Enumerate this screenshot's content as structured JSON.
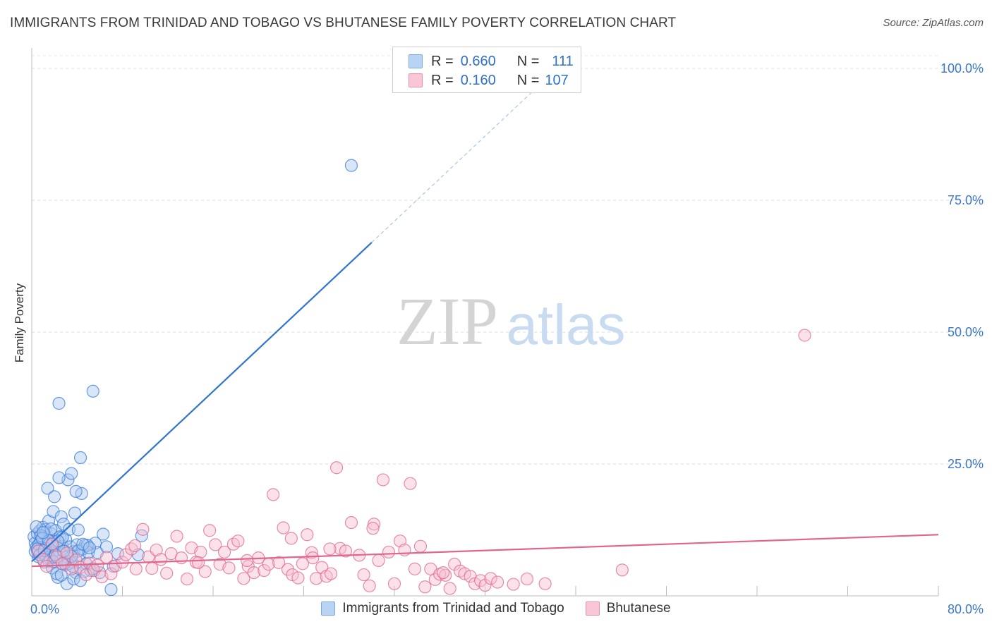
{
  "header": {
    "title": "IMMIGRANTS FROM TRINIDAD AND TOBAGO VS BHUTANESE FAMILY POVERTY CORRELATION CHART",
    "source": "Source: ZipAtlas.com"
  },
  "watermark": {
    "zip": "ZIP",
    "atlas": "atlas"
  },
  "legend": {
    "rows": [
      {
        "r_label": "R =",
        "r_value": "0.660",
        "n_label": "N =",
        "n_value": "111",
        "color": "#7aaae8",
        "fill": "#b9d3f5"
      },
      {
        "r_label": "R =",
        "r_value": "0.160",
        "n_label": "N =",
        "n_value": "107",
        "color": "#eb8fb0",
        "fill": "#f8c6d6"
      }
    ]
  },
  "chart_data": {
    "type": "scatter",
    "title": "IMMIGRANTS FROM TRINIDAD AND TOBAGO VS BHUTANESE FAMILY POVERTY CORRELATION CHART",
    "xlabel": "",
    "ylabel": "Family Poverty",
    "xlim": [
      0,
      80
    ],
    "ylim": [
      0,
      100
    ],
    "x_tick_labels": [
      "0.0%",
      "80.0%"
    ],
    "y_ticks": [
      25,
      50,
      75,
      100
    ],
    "y_tick_labels": [
      "25.0%",
      "50.0%",
      "75.0%",
      "100.0%"
    ],
    "grid": true,
    "series": [
      {
        "name": "Immigrants from Trinidad and Tobago",
        "color": "#3a7bd5",
        "fill": "#aac8f0",
        "trend": {
          "x0": 0,
          "y0": 6.5,
          "x1": 30,
          "y1": 67,
          "dashed_to_x": 45
        },
        "points": [
          [
            0.2,
            11.2
          ],
          [
            0.3,
            10.0
          ],
          [
            0.4,
            9.2
          ],
          [
            0.5,
            8.5
          ],
          [
            0.5,
            11.8
          ],
          [
            0.6,
            7.4
          ],
          [
            0.7,
            12.3
          ],
          [
            0.7,
            9.8
          ],
          [
            0.8,
            10.5
          ],
          [
            0.9,
            8.9
          ],
          [
            1.0,
            13.0
          ],
          [
            1.0,
            11.0
          ],
          [
            1.1,
            9.0
          ],
          [
            1.2,
            7.7
          ],
          [
            1.2,
            12.6
          ],
          [
            1.3,
            10.2
          ],
          [
            1.4,
            8.3
          ],
          [
            1.5,
            14.2
          ],
          [
            1.5,
            6.6
          ],
          [
            1.6,
            9.9
          ],
          [
            1.7,
            11.8
          ],
          [
            1.8,
            5.3
          ],
          [
            1.8,
            8.1
          ],
          [
            1.9,
            16.0
          ],
          [
            2.0,
            10.3
          ],
          [
            2.0,
            7.3
          ],
          [
            2.1,
            12.4
          ],
          [
            2.2,
            9.4
          ],
          [
            2.3,
            3.5
          ],
          [
            2.4,
            8.2
          ],
          [
            2.5,
            11.2
          ],
          [
            2.6,
            15.0
          ],
          [
            2.6,
            6.7
          ],
          [
            2.7,
            9.4
          ],
          [
            2.8,
            13.6
          ],
          [
            2.9,
            8.4
          ],
          [
            3.0,
            10.7
          ],
          [
            3.0,
            5.8
          ],
          [
            3.1,
            7.4
          ],
          [
            3.2,
            22.0
          ],
          [
            3.3,
            12.6
          ],
          [
            3.4,
            9.3
          ],
          [
            3.5,
            23.2
          ],
          [
            3.6,
            6.3
          ],
          [
            3.7,
            8.4
          ],
          [
            3.8,
            15.7
          ],
          [
            3.9,
            4.4
          ],
          [
            4.0,
            9.7
          ],
          [
            4.1,
            12.5
          ],
          [
            4.2,
            7.7
          ],
          [
            4.3,
            26.2
          ],
          [
            4.4,
            19.4
          ],
          [
            4.5,
            8.9
          ],
          [
            4.6,
            4.6
          ],
          [
            4.7,
            9.6
          ],
          [
            4.8,
            6.1
          ],
          [
            5.0,
            8.2
          ],
          [
            5.2,
            4.8
          ],
          [
            5.4,
            38.8
          ],
          [
            5.6,
            10.0
          ],
          [
            5.8,
            8.2
          ],
          [
            6.0,
            4.4
          ],
          [
            6.3,
            11.7
          ],
          [
            6.6,
            9.3
          ],
          [
            7.0,
            1.2
          ],
          [
            7.2,
            5.6
          ],
          [
            7.6,
            8.0
          ],
          [
            1.4,
            20.4
          ],
          [
            2.4,
            22.4
          ],
          [
            3.9,
            19.8
          ],
          [
            2.0,
            18.8
          ],
          [
            1.7,
            12.7
          ],
          [
            0.4,
            13.1
          ],
          [
            0.9,
            8.1
          ],
          [
            1.1,
            6.4
          ],
          [
            1.6,
            7.2
          ],
          [
            2.2,
            4.2
          ],
          [
            3.1,
            2.3
          ],
          [
            2.6,
            3.9
          ],
          [
            4.1,
            8.5
          ],
          [
            4.9,
            9.6
          ],
          [
            5.4,
            5.2
          ],
          [
            0.3,
            8.4
          ],
          [
            0.6,
            9.7
          ],
          [
            0.8,
            11.4
          ],
          [
            1.3,
            7.3
          ],
          [
            1.9,
            6.5
          ],
          [
            2.7,
            11.1
          ],
          [
            3.2,
            6.1
          ],
          [
            3.6,
            5.6
          ],
          [
            2.4,
            36.5
          ],
          [
            9.7,
            11.4
          ],
          [
            9.4,
            7.8
          ],
          [
            28.2,
            81.6
          ],
          [
            0.5,
            8.9
          ],
          [
            0.9,
            10.9
          ],
          [
            1.2,
            9.0
          ],
          [
            1.5,
            10.4
          ],
          [
            2.1,
            7.8
          ],
          [
            2.9,
            6.2
          ],
          [
            3.5,
            7.5
          ],
          [
            4.5,
            9.8
          ],
          [
            1.0,
            12.0
          ],
          [
            1.8,
            9.8
          ],
          [
            2.3,
            10.4
          ],
          [
            0.7,
            7.8
          ],
          [
            1.1,
            8.6
          ],
          [
            2.8,
            8.5
          ],
          [
            3.7,
            3.2
          ],
          [
            4.3,
            2.9
          ],
          [
            5.1,
            9.1
          ]
        ]
      },
      {
        "name": "Bhutanese",
        "color": "#e0668f",
        "fill": "#f6bfd1",
        "trend": {
          "x0": 0,
          "y0": 5.6,
          "x1": 80,
          "y1": 11.6
        },
        "points": [
          [
            0.6,
            8.5
          ],
          [
            1.0,
            6.9
          ],
          [
            1.3,
            5.6
          ],
          [
            1.8,
            9.8
          ],
          [
            2.2,
            7.4
          ],
          [
            2.7,
            6.1
          ],
          [
            3.1,
            8.1
          ],
          [
            3.5,
            5.1
          ],
          [
            3.9,
            6.8
          ],
          [
            4.3,
            5.4
          ],
          [
            4.8,
            4.0
          ],
          [
            5.1,
            6.2
          ],
          [
            5.5,
            4.8
          ],
          [
            5.8,
            5.8
          ],
          [
            6.2,
            3.6
          ],
          [
            6.6,
            7.3
          ],
          [
            7.0,
            4.2
          ],
          [
            7.4,
            5.7
          ],
          [
            8.0,
            6.4
          ],
          [
            8.3,
            7.8
          ],
          [
            8.8,
            8.9
          ],
          [
            9.2,
            5.1
          ],
          [
            9.8,
            12.6
          ],
          [
            10.3,
            7.4
          ],
          [
            10.6,
            5.2
          ],
          [
            11.0,
            8.7
          ],
          [
            11.4,
            6.9
          ],
          [
            11.9,
            4.3
          ],
          [
            12.3,
            8.0
          ],
          [
            12.8,
            11.3
          ],
          [
            13.2,
            7.2
          ],
          [
            13.7,
            3.2
          ],
          [
            14.1,
            9.1
          ],
          [
            14.5,
            6.4
          ],
          [
            14.9,
            8.3
          ],
          [
            15.3,
            4.6
          ],
          [
            15.7,
            12.4
          ],
          [
            16.2,
            9.7
          ],
          [
            16.6,
            6.0
          ],
          [
            17.0,
            8.3
          ],
          [
            17.4,
            5.3
          ],
          [
            17.8,
            9.8
          ],
          [
            18.2,
            10.4
          ],
          [
            18.7,
            3.3
          ],
          [
            19.1,
            5.6
          ],
          [
            19.6,
            4.4
          ],
          [
            20.0,
            7.2
          ],
          [
            20.5,
            4.8
          ],
          [
            20.9,
            6.0
          ],
          [
            21.3,
            19.2
          ],
          [
            21.8,
            6.3
          ],
          [
            22.2,
            12.9
          ],
          [
            22.6,
            5.0
          ],
          [
            23.0,
            4.0
          ],
          [
            23.5,
            3.4
          ],
          [
            23.9,
            6.1
          ],
          [
            24.3,
            11.6
          ],
          [
            24.7,
            8.2
          ],
          [
            25.1,
            3.3
          ],
          [
            25.6,
            5.4
          ],
          [
            26.0,
            3.7
          ],
          [
            26.4,
            4.2
          ],
          [
            26.9,
            24.3
          ],
          [
            27.2,
            9.0
          ],
          [
            27.7,
            8.5
          ],
          [
            28.2,
            13.9
          ],
          [
            28.9,
            7.7
          ],
          [
            29.3,
            4.0
          ],
          [
            29.8,
            1.9
          ],
          [
            30.2,
            13.6
          ],
          [
            30.6,
            6.7
          ],
          [
            31.0,
            22.0
          ],
          [
            31.5,
            8.3
          ],
          [
            32.0,
            2.3
          ],
          [
            32.5,
            10.4
          ],
          [
            32.9,
            8.7
          ],
          [
            33.4,
            21.3
          ],
          [
            33.8,
            5.1
          ],
          [
            34.3,
            9.4
          ],
          [
            34.7,
            1.7
          ],
          [
            35.2,
            5.1
          ],
          [
            35.6,
            3.1
          ],
          [
            36.0,
            4.1
          ],
          [
            36.5,
            3.9
          ],
          [
            36.9,
            1.4
          ],
          [
            37.3,
            6.0
          ],
          [
            37.8,
            4.7
          ],
          [
            38.2,
            4.2
          ],
          [
            38.7,
            3.7
          ],
          [
            39.1,
            2.3
          ],
          [
            39.6,
            2.9
          ],
          [
            40.0,
            2.0
          ],
          [
            40.5,
            3.3
          ],
          [
            41.1,
            2.6
          ],
          [
            42.5,
            2.2
          ],
          [
            43.7,
            3.2
          ],
          [
            45.3,
            2.3
          ],
          [
            52.1,
            4.9
          ],
          [
            68.2,
            49.4
          ],
          [
            9.1,
            9.5
          ],
          [
            14.7,
            6.3
          ],
          [
            19.0,
            6.7
          ],
          [
            22.9,
            10.9
          ],
          [
            26.3,
            8.9
          ],
          [
            30.1,
            12.8
          ],
          [
            24.8,
            7.2
          ],
          [
            36.3,
            4.4
          ]
        ]
      }
    ]
  },
  "bottom_legend": [
    "Immigrants from Trinidad and Tobago",
    "Bhutanese"
  ]
}
